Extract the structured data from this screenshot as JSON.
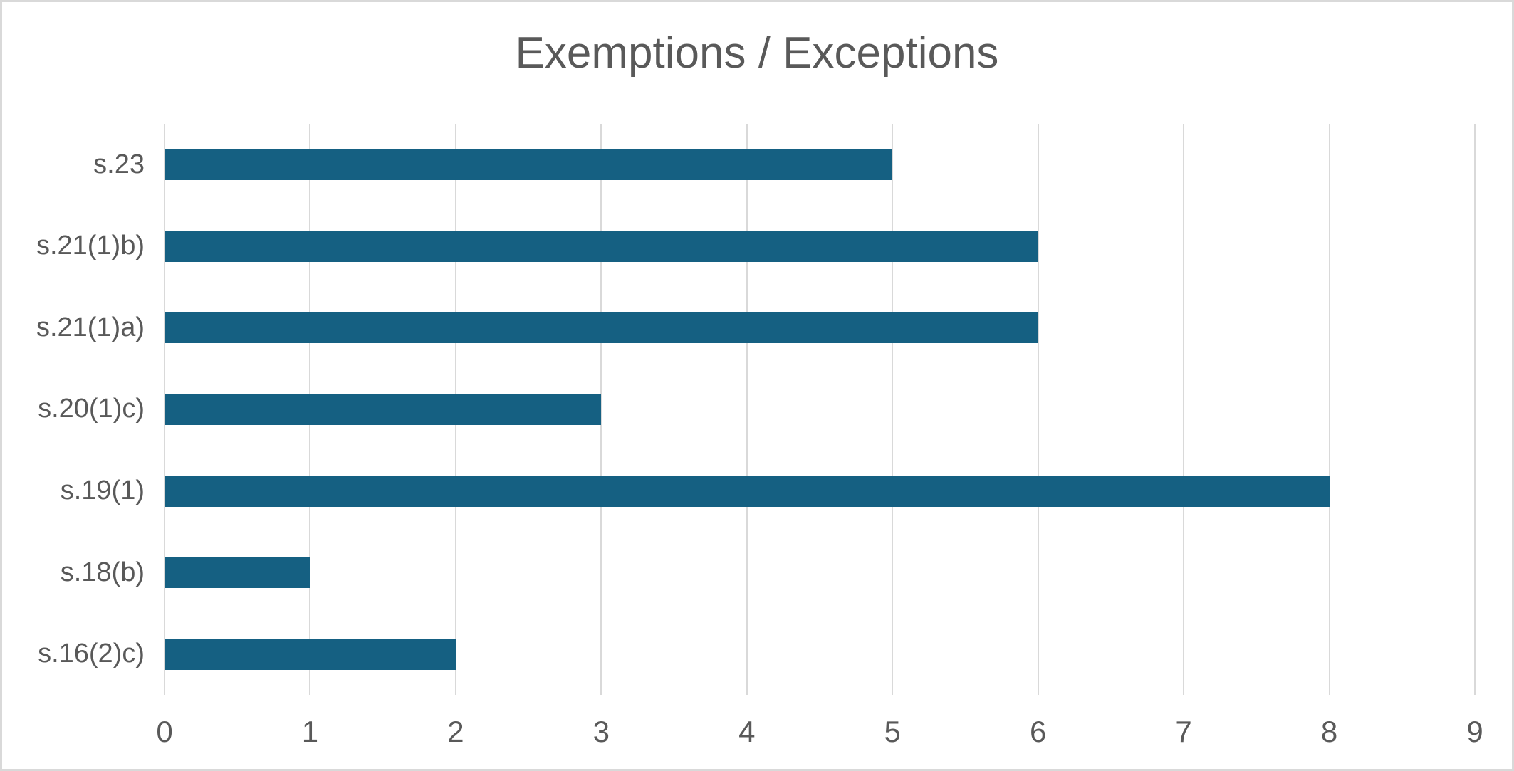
{
  "chart_data": {
    "type": "bar",
    "orientation": "horizontal",
    "title": "Exemptions / Exceptions",
    "categories_top_to_bottom": [
      "s.23",
      "s.21(1)b)",
      "s.21(1)a)",
      "s.20(1)c)",
      "s.19(1)",
      "s.18(b)",
      "s.16(2)c)"
    ],
    "values": [
      5,
      6,
      6,
      3,
      8,
      1,
      2
    ],
    "xlabel": "",
    "ylabel": "",
    "xlim": [
      0,
      9
    ],
    "x_ticks": [
      0,
      1,
      2,
      3,
      4,
      5,
      6,
      7,
      8,
      9
    ],
    "grid": "vertical-gridlines-on",
    "legend": "none",
    "data_labels": "none",
    "colors": {
      "bar": "#156082",
      "gridline": "#D9D9D9",
      "text": "#595959",
      "border": "#D9D9D9",
      "background": "#FFFFFF"
    }
  }
}
